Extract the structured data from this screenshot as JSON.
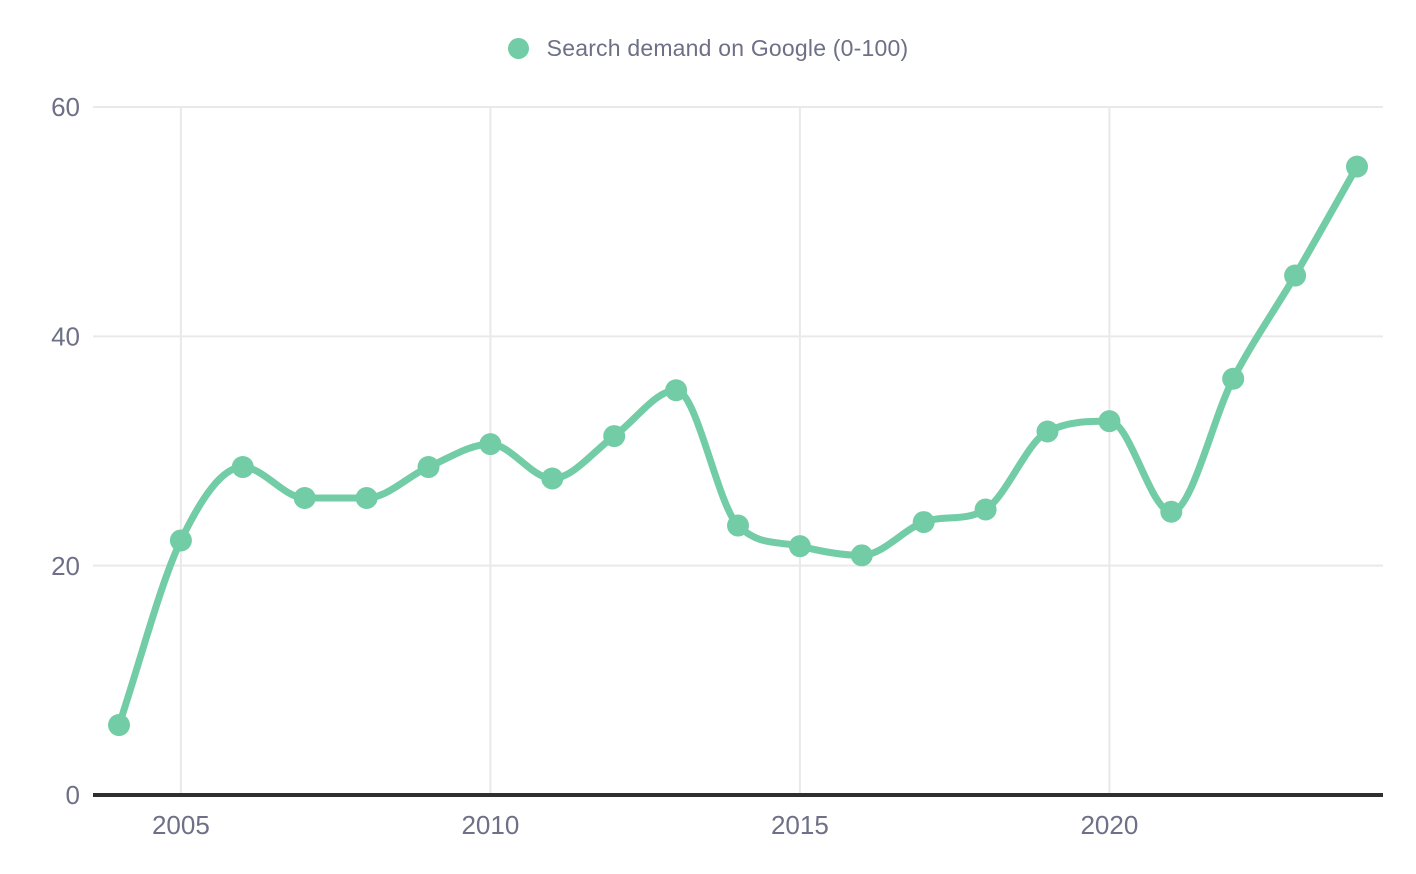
{
  "legend": {
    "label": "Search demand on Google (0-100)"
  },
  "colors": {
    "series": "#72cca5",
    "axis_text": "#6d7086",
    "gridline": "#e9e9e9",
    "axis_line": "#2f2f2f",
    "background": "#ffffff"
  },
  "chart_data": {
    "type": "line",
    "title": "",
    "xlabel": "",
    "ylabel": "",
    "legend_entries": [
      "Search demand on Google (0-100)"
    ],
    "legend_position": "top-center",
    "grid": true,
    "smooth": true,
    "marker": "circle",
    "x": [
      2004,
      2005,
      2006,
      2007,
      2008,
      2009,
      2010,
      2011,
      2012,
      2013,
      2014,
      2015,
      2016,
      2017,
      2018,
      2019,
      2020,
      2021,
      2022,
      2023,
      2024
    ],
    "series": [
      {
        "name": "Search demand on Google (0-100)",
        "color": "#72cca5",
        "values": [
          6.1,
          22.2,
          28.6,
          25.9,
          25.9,
          28.6,
          30.6,
          27.6,
          31.3,
          35.3,
          23.5,
          21.7,
          20.9,
          23.8,
          24.9,
          31.7,
          32.6,
          24.7,
          36.3,
          45.3,
          54.8
        ]
      }
    ],
    "ylim": [
      0,
      60
    ],
    "y_ticks": [
      0,
      20,
      40,
      60
    ],
    "x_ticks": [
      2005,
      2010,
      2015,
      2020
    ]
  }
}
